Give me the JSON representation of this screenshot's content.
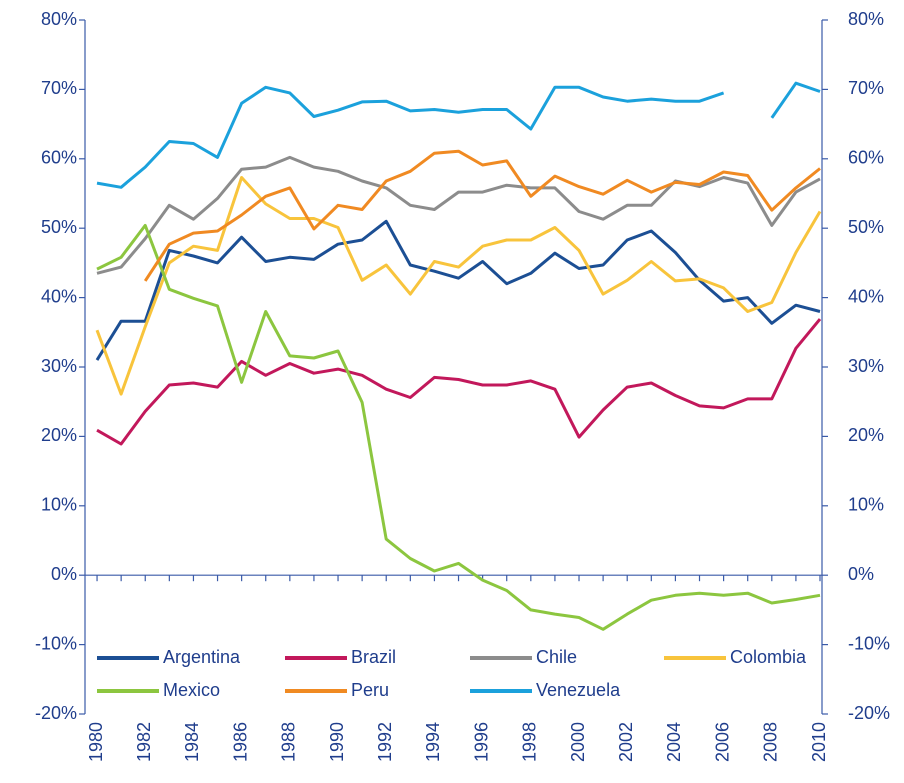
{
  "chart_data": {
    "type": "line",
    "x": [
      1980,
      1981,
      1982,
      1983,
      1984,
      1985,
      1986,
      1987,
      1988,
      1989,
      1990,
      1991,
      1992,
      1993,
      1994,
      1995,
      1996,
      1997,
      1998,
      1999,
      2000,
      2001,
      2002,
      2003,
      2004,
      2005,
      2006,
      2007,
      2008,
      2009,
      2010
    ],
    "xlim": [
      1979.5,
      2010
    ],
    "xticks": [
      1980,
      1982,
      1984,
      1986,
      1988,
      1990,
      1992,
      1994,
      1996,
      1998,
      2000,
      2002,
      2004,
      2006,
      2008,
      2010
    ],
    "ylim": [
      -20,
      80
    ],
    "yticks": [
      {
        "value": -20,
        "label": "-20%"
      },
      {
        "value": -10,
        "label": "-10%"
      },
      {
        "value": 0,
        "label": "0%"
      },
      {
        "value": 10,
        "label": "10%"
      },
      {
        "value": 20,
        "label": "20%"
      },
      {
        "value": 30,
        "label": "30%"
      },
      {
        "value": 40,
        "label": "40%"
      },
      {
        "value": 50,
        "label": "50%"
      },
      {
        "value": 60,
        "label": "60%"
      },
      {
        "value": 70,
        "label": "70%"
      },
      {
        "value": 80,
        "label": "80%"
      }
    ],
    "y2lim": [
      -20,
      80
    ],
    "y2ticks": [
      {
        "value": -20,
        "label": "-20%"
      },
      {
        "value": -10,
        "label": "-10%"
      },
      {
        "value": 0,
        "label": "0%"
      },
      {
        "value": 10,
        "label": "10%"
      },
      {
        "value": 20,
        "label": "20%"
      },
      {
        "value": 30,
        "label": "30%"
      },
      {
        "value": 40,
        "label": "40%"
      },
      {
        "value": 50,
        "label": "50%"
      },
      {
        "value": 60,
        "label": "60%"
      },
      {
        "value": 70,
        "label": "70%"
      },
      {
        "value": 80,
        "label": "80%"
      }
    ],
    "grid": false,
    "legend": "lower left",
    "series": [
      {
        "name": "Argentina",
        "color": "#1c4f94",
        "values": [
          31,
          36.6,
          36.6,
          46.8,
          46,
          45,
          48.7,
          45.2,
          45.8,
          45.5,
          47.7,
          48.3,
          51,
          44.7,
          43.8,
          42.8,
          45.2,
          42,
          43.5,
          46.4,
          44.2,
          44.7,
          48.3,
          49.6,
          46.5,
          42.5,
          39.5,
          40,
          36.3,
          38.9,
          38
        ]
      },
      {
        "name": "Brazil",
        "color": "#c2185b",
        "values": [
          20.9,
          18.9,
          23.6,
          27.4,
          27.7,
          27.1,
          30.8,
          28.8,
          30.5,
          29.1,
          29.7,
          28.8,
          26.8,
          25.6,
          28.5,
          28.2,
          27.4,
          27.4,
          28,
          26.8,
          19.9,
          23.8,
          27.1,
          27.7,
          25.9,
          24.4,
          24.1,
          25.4,
          25.4,
          32.7,
          36.9
        ]
      },
      {
        "name": "Chile",
        "color": "#8c8c8c",
        "values": [
          43.5,
          44.4,
          48.5,
          53.3,
          51.3,
          54.3,
          58.5,
          58.8,
          60.2,
          58.8,
          58.2,
          56.8,
          55.8,
          53.3,
          52.7,
          55.2,
          55.2,
          56.2,
          55.8,
          55.8,
          52.4,
          51.3,
          53.3,
          53.3,
          56.8,
          56,
          57.3,
          56.5,
          50.4,
          55.2,
          57.1
        ]
      },
      {
        "name": "Colombia",
        "color": "#f8c43c",
        "values": [
          35.3,
          26.1,
          35.8,
          45,
          47.4,
          46.8,
          57.3,
          53.5,
          51.4,
          51.4,
          50.1,
          42.5,
          44.7,
          40.5,
          45.2,
          44.4,
          47.4,
          48.3,
          48.3,
          50.1,
          46.8,
          40.5,
          42.5,
          45.2,
          42.4,
          42.7,
          41.4,
          38,
          39.3,
          46.5,
          52.4
        ]
      },
      {
        "name": "Mexico",
        "color": "#8cc63f",
        "values": [
          44.1,
          45.8,
          50.4,
          41.2,
          39.9,
          38.8,
          27.8,
          38,
          31.6,
          31.3,
          32.3,
          24.9,
          5.2,
          2.4,
          0.6,
          1.7,
          -0.7,
          -2.2,
          -5,
          -5.6,
          -6.1,
          -7.8,
          -5.6,
          -3.6,
          -2.9,
          -2.6,
          -2.9,
          -2.6,
          -4,
          -3.5,
          -2.9
        ]
      },
      {
        "name": "Peru",
        "color": "#f08a22",
        "values": [
          null,
          null,
          42.4,
          47.7,
          49.3,
          49.6,
          51.9,
          54.6,
          55.8,
          49.9,
          53.3,
          52.7,
          56.8,
          58.2,
          60.8,
          61.1,
          59.1,
          59.7,
          54.6,
          57.5,
          56,
          54.9,
          56.9,
          55.2,
          56.6,
          56.3,
          58.1,
          57.6,
          52.6,
          55.8,
          58.6
        ]
      },
      {
        "name": "Venezuela",
        "color": "#1ba1dc",
        "values": [
          56.5,
          55.9,
          58.8,
          62.5,
          62.2,
          60.2,
          68,
          70.3,
          69.5,
          66.1,
          67,
          68.2,
          68.3,
          66.9,
          67.1,
          66.7,
          67.1,
          67.1,
          64.3,
          70.3,
          70.3,
          68.9,
          68.3,
          68.6,
          68.3,
          68.3,
          69.5,
          null,
          65.9,
          70.9,
          69.7
        ]
      }
    ]
  }
}
